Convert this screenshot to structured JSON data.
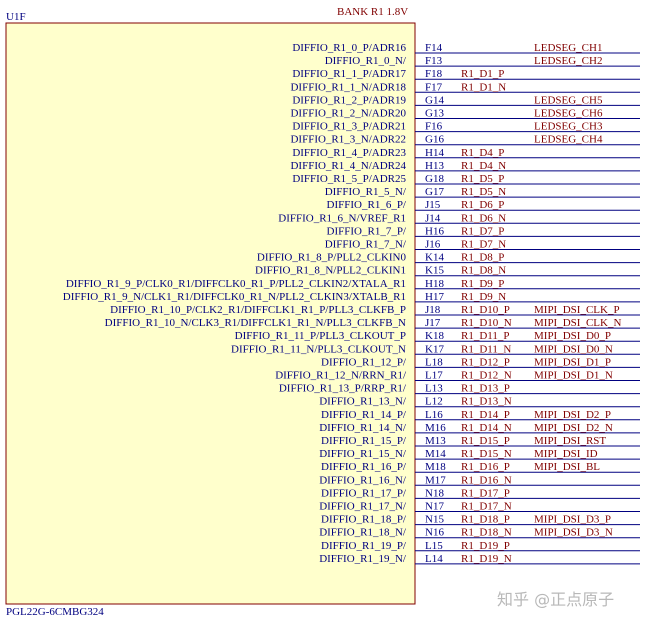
{
  "part": {
    "ref": "U1F",
    "bank": "BANK R1 1.8V",
    "device": "PGL22G-6CMBG324"
  },
  "watermark": "知乎 @正点原子",
  "colors": {
    "body_fill": "#ffffcc",
    "body_stroke": "#800000",
    "pin_text": "#000080",
    "net_text": "#800000",
    "wire": "#000080"
  },
  "pins": [
    {
      "signal": "DIFFIO_R1_0_P/ADR16",
      "num": "F14",
      "net": "",
      "label": "LEDSEG_CH1"
    },
    {
      "signal": "DIFFIO_R1_0_N/",
      "num": "F13",
      "net": "",
      "label": "LEDSEG_CH2"
    },
    {
      "signal": "DIFFIO_R1_1_P/ADR17",
      "num": "F18",
      "net": "R1_D1_P",
      "label": ""
    },
    {
      "signal": "DIFFIO_R1_1_N/ADR18",
      "num": "F17",
      "net": "R1_D1_N",
      "label": ""
    },
    {
      "signal": "DIFFIO_R1_2_P/ADR19",
      "num": "G14",
      "net": "",
      "label": "LEDSEG_CH5"
    },
    {
      "signal": "DIFFIO_R1_2_N/ADR20",
      "num": "G13",
      "net": "",
      "label": "LEDSEG_CH6"
    },
    {
      "signal": "DIFFIO_R1_3_P/ADR21",
      "num": "F16",
      "net": "",
      "label": "LEDSEG_CH3"
    },
    {
      "signal": "DIFFIO_R1_3_N/ADR22",
      "num": "G16",
      "net": "",
      "label": "LEDSEG_CH4"
    },
    {
      "signal": "DIFFIO_R1_4_P/ADR23",
      "num": "H14",
      "net": "R1_D4_P",
      "label": ""
    },
    {
      "signal": "DIFFIO_R1_4_N/ADR24",
      "num": "H13",
      "net": "R1_D4_N",
      "label": ""
    },
    {
      "signal": "DIFFIO_R1_5_P/ADR25",
      "num": "G18",
      "net": "R1_D5_P",
      "label": ""
    },
    {
      "signal": "DIFFIO_R1_5_N/",
      "num": "G17",
      "net": "R1_D5_N",
      "label": ""
    },
    {
      "signal": "DIFFIO_R1_6_P/",
      "num": "J15",
      "net": "R1_D6_P",
      "label": ""
    },
    {
      "signal": "DIFFIO_R1_6_N/VREF_R1",
      "num": "J14",
      "net": "R1_D6_N",
      "label": ""
    },
    {
      "signal": "DIFFIO_R1_7_P/",
      "num": "H16",
      "net": "R1_D7_P",
      "label": ""
    },
    {
      "signal": "DIFFIO_R1_7_N/",
      "num": "J16",
      "net": "R1_D7_N",
      "label": ""
    },
    {
      "signal": "DIFFIO_R1_8_P/PLL2_CLKIN0",
      "num": "K14",
      "net": "R1_D8_P",
      "label": ""
    },
    {
      "signal": "DIFFIO_R1_8_N/PLL2_CLKIN1",
      "num": "K15",
      "net": "R1_D8_N",
      "label": ""
    },
    {
      "signal": "DIFFIO_R1_9_P/CLK0_R1/DIFFCLK0_R1_P/PLL2_CLKIN2/XTALA_R1",
      "num": "H18",
      "net": "R1_D9_P",
      "label": ""
    },
    {
      "signal": "DIFFIO_R1_9_N/CLK1_R1/DIFFCLK0_R1_N/PLL2_CLKIN3/XTALB_R1",
      "num": "H17",
      "net": "R1_D9_N",
      "label": ""
    },
    {
      "signal": "DIFFIO_R1_10_P/CLK2_R1/DIFFCLK1_R1_P/PLL3_CLKFB_P",
      "num": "J18",
      "net": "R1_D10_P",
      "label": "MIPI_DSI_CLK_P"
    },
    {
      "signal": "DIFFIO_R1_10_N/CLK3_R1/DIFFCLK1_R1_N/PLL3_CLKFB_N",
      "num": "J17",
      "net": "R1_D10_N",
      "label": "MIPI_DSI_CLK_N"
    },
    {
      "signal": "DIFFIO_R1_11_P/PLL3_CLKOUT_P",
      "num": "K18",
      "net": "R1_D11_P",
      "label": "MIPI_DSI_D0_P"
    },
    {
      "signal": "DIFFIO_R1_11_N/PLL3_CLKOUT_N",
      "num": "K17",
      "net": "R1_D11_N",
      "label": "MIPI_DSI_D0_N"
    },
    {
      "signal": "DIFFIO_R1_12_P/",
      "num": "L18",
      "net": "R1_D12_P",
      "label": "MIPI_DSI_D1_P"
    },
    {
      "signal": "DIFFIO_R1_12_N/RRN_R1/",
      "num": "L17",
      "net": "R1_D12_N",
      "label": "MIPI_DSI_D1_N"
    },
    {
      "signal": "DIFFIO_R1_13_P/RRP_R1/",
      "num": "L13",
      "net": "R1_D13_P",
      "label": ""
    },
    {
      "signal": "DIFFIO_R1_13_N/",
      "num": "L12",
      "net": "R1_D13_N",
      "label": ""
    },
    {
      "signal": "DIFFIO_R1_14_P/",
      "num": "L16",
      "net": "R1_D14_P",
      "label": "MIPI_DSI_D2_P"
    },
    {
      "signal": "DIFFIO_R1_14_N/",
      "num": "M16",
      "net": "R1_D14_N",
      "label": "MIPI_DSI_D2_N"
    },
    {
      "signal": "DIFFIO_R1_15_P/",
      "num": "M13",
      "net": "R1_D15_P",
      "label": "MIPI_DSI_RST"
    },
    {
      "signal": "DIFFIO_R1_15_N/",
      "num": "M14",
      "net": "R1_D15_N",
      "label": "MIPI_DSI_ID"
    },
    {
      "signal": "DIFFIO_R1_16_P/",
      "num": "M18",
      "net": "R1_D16_P",
      "label": "MIPI_DSI_BL"
    },
    {
      "signal": "DIFFIO_R1_16_N/",
      "num": "M17",
      "net": "R1_D16_N",
      "label": ""
    },
    {
      "signal": "DIFFIO_R1_17_P/",
      "num": "N18",
      "net": "R1_D17_P",
      "label": ""
    },
    {
      "signal": "DIFFIO_R1_17_N/",
      "num": "N17",
      "net": "R1_D17_N",
      "label": ""
    },
    {
      "signal": "DIFFIO_R1_18_P/",
      "num": "N15",
      "net": "R1_D18_P",
      "label": "MIPI_DSI_D3_P"
    },
    {
      "signal": "DIFFIO_R1_18_N/",
      "num": "N16",
      "net": "R1_D18_N",
      "label": "MIPI_DSI_D3_N"
    },
    {
      "signal": "DIFFIO_R1_19_P/",
      "num": "L15",
      "net": "R1_D19_P",
      "label": ""
    },
    {
      "signal": "DIFFIO_R1_19_N/",
      "num": "L14",
      "net": "R1_D19_N",
      "label": ""
    }
  ]
}
